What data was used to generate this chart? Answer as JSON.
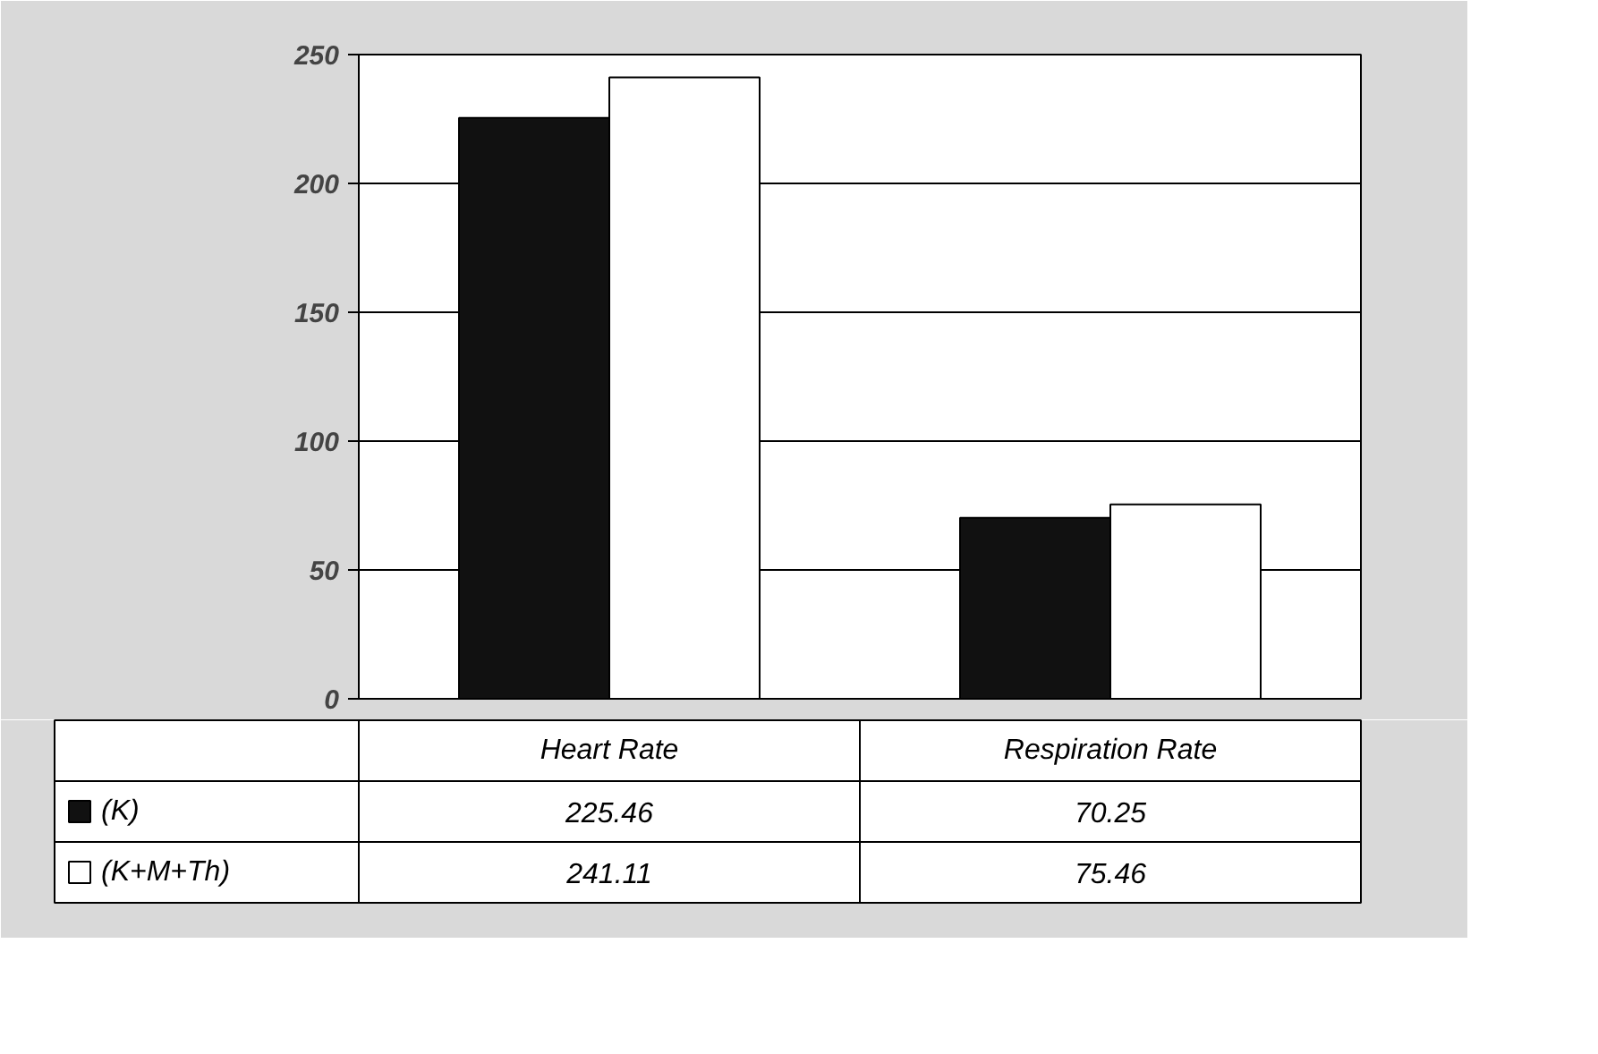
{
  "chart_data": {
    "type": "bar",
    "categories": [
      "Heart Rate",
      "Respiration Rate"
    ],
    "series": [
      {
        "name": "(K)",
        "color": "#111111",
        "values": [
          225.46,
          70.25
        ]
      },
      {
        "name": "(K+M+Th)",
        "color": "#ffffff",
        "values": [
          241.11,
          75.46
        ]
      }
    ],
    "ylim": [
      0,
      250
    ],
    "yticks": [
      0,
      50,
      100,
      150,
      200,
      250
    ],
    "grid": "y",
    "legend": "bottom",
    "data_labels": true
  }
}
